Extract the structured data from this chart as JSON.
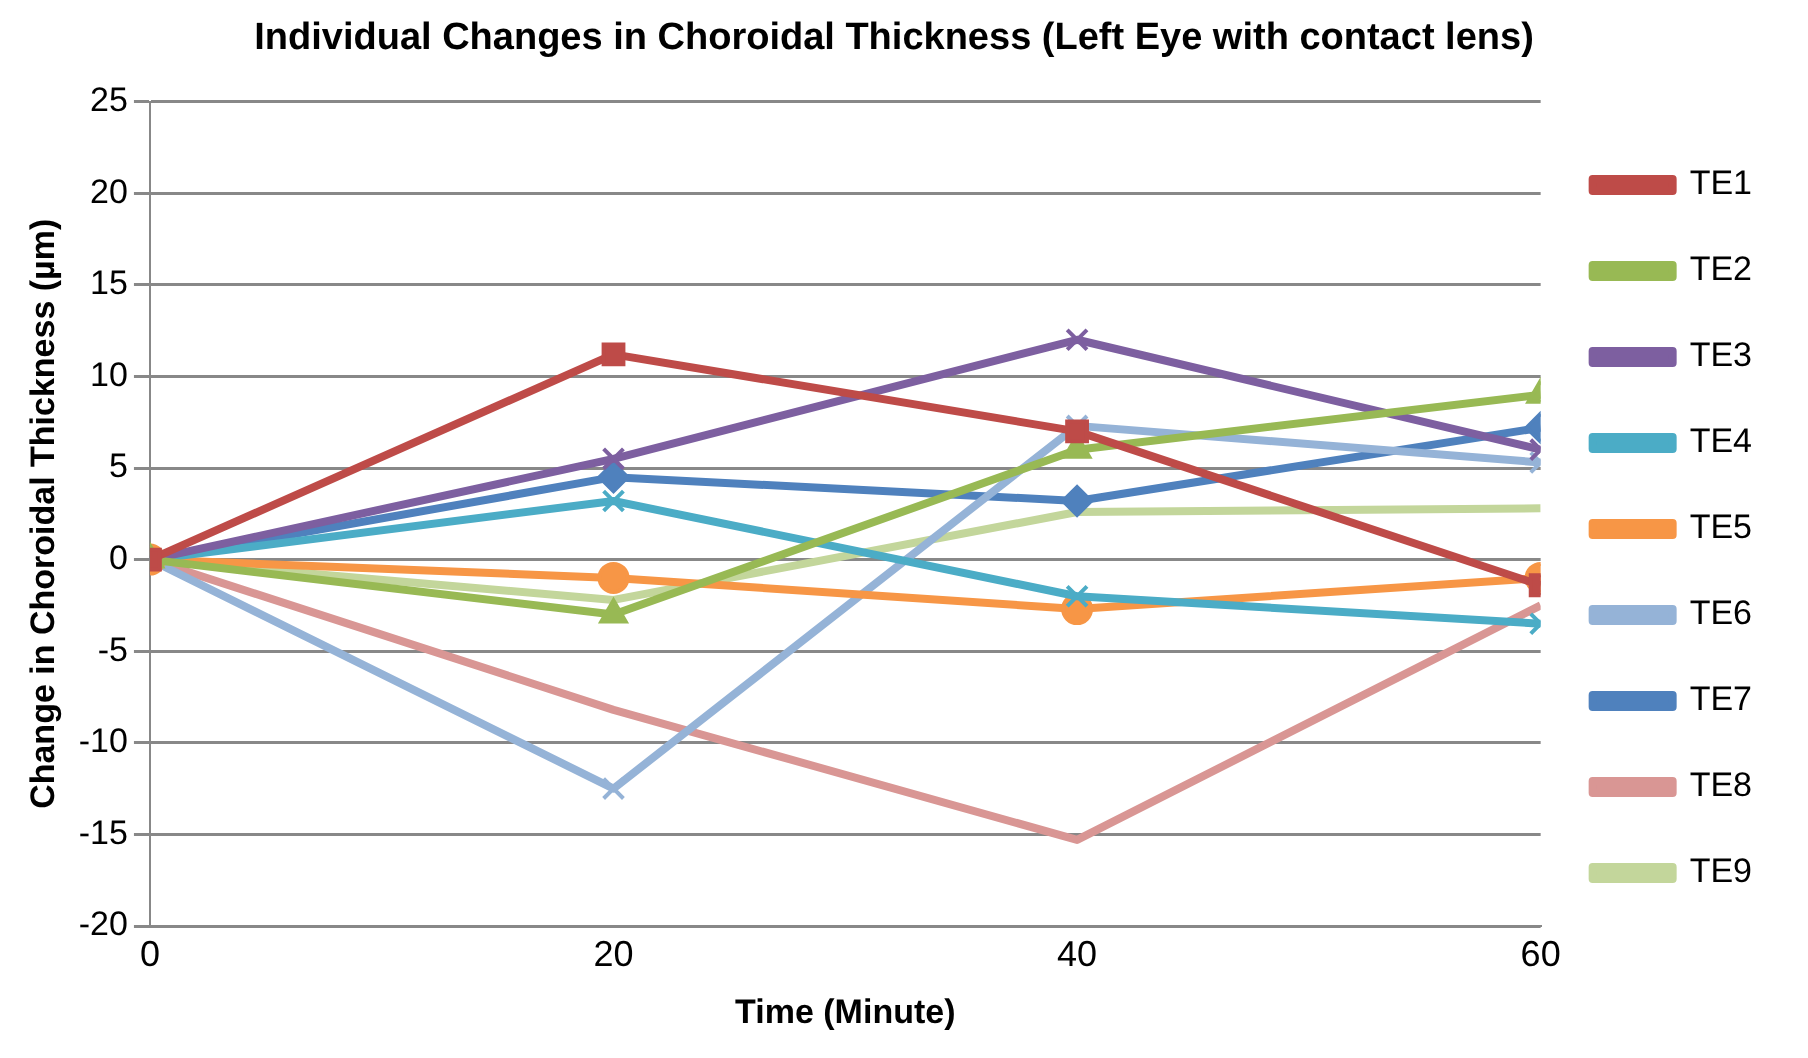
{
  "chart_data": {
    "type": "line",
    "title": "Individual Changes in Choroidal Thickness (Left Eye with contact lens)",
    "xlabel": "Time (Minute)",
    "ylabel": "Change in Choroidal Thickness (µm)",
    "x": [
      0,
      20,
      40,
      60
    ],
    "xlim": [
      0,
      60
    ],
    "xticks": [
      0,
      20,
      40,
      60
    ],
    "ylim": [
      -20,
      25
    ],
    "yticks": [
      -20,
      -15,
      -10,
      -5,
      0,
      5,
      10,
      15,
      20,
      25
    ],
    "grid": "y",
    "legend": "right",
    "series": [
      {
        "name": "TE1",
        "color": "#be4b48",
        "marker": "square",
        "values": [
          0,
          11.2,
          7,
          -1.4
        ]
      },
      {
        "name": "TE2",
        "color": "#98b954",
        "marker": "triangle",
        "values": [
          0,
          -3,
          6,
          9
        ]
      },
      {
        "name": "TE3",
        "color": "#7d5fa0",
        "marker": "cross",
        "values": [
          0,
          5.5,
          12,
          6
        ]
      },
      {
        "name": "TE4",
        "color": "#4bacc6",
        "marker": "cross",
        "values": [
          0,
          3.2,
          -2,
          -3.5
        ]
      },
      {
        "name": "TE5",
        "color": "#f79646",
        "marker": "circle",
        "values": [
          0,
          -1,
          -2.7,
          -1
        ]
      },
      {
        "name": "TE6",
        "color": "#95b3d7",
        "marker": "cross",
        "values": [
          0,
          -12.5,
          7.3,
          5.3
        ]
      },
      {
        "name": "TE7",
        "color": "#4f81bd",
        "marker": "diamond",
        "values": [
          0,
          4.5,
          3.2,
          7.2
        ]
      },
      {
        "name": "TE8",
        "color": "#d99694",
        "marker": "none",
        "values": [
          0,
          -8.2,
          -15.3,
          -2.5
        ]
      },
      {
        "name": "TE9",
        "color": "#c3d69b",
        "marker": "none",
        "values": [
          0,
          -2.2,
          2.6,
          2.8
        ]
      }
    ]
  }
}
